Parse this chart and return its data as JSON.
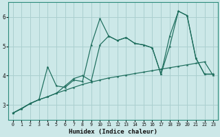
{
  "xlabel": "Humidex (Indice chaleur)",
  "background_color": "#cce8e8",
  "grid_color": "#aacfcf",
  "line_color": "#1a6b5a",
  "xlim": [
    -0.5,
    23.5
  ],
  "ylim": [
    2.5,
    6.5
  ],
  "xticks": [
    0,
    1,
    2,
    3,
    4,
    5,
    6,
    7,
    8,
    9,
    10,
    11,
    12,
    13,
    14,
    15,
    16,
    17,
    18,
    19,
    20,
    21,
    22,
    23
  ],
  "yticks": [
    3,
    4,
    5,
    6
  ],
  "line1_x": [
    0,
    1,
    2,
    3,
    4,
    5,
    6,
    7,
    8,
    9,
    10,
    11,
    12,
    13,
    14,
    15,
    16,
    17,
    18,
    19,
    20,
    21,
    22,
    23
  ],
  "line1_y": [
    2.72,
    2.87,
    3.05,
    3.18,
    3.28,
    3.4,
    3.5,
    3.6,
    3.7,
    3.78,
    3.85,
    3.92,
    3.97,
    4.02,
    4.07,
    4.12,
    4.17,
    4.22,
    4.27,
    4.32,
    4.37,
    4.42,
    4.47,
    4.0
  ],
  "line2_x": [
    0,
    1,
    2,
    3,
    4,
    5,
    6,
    7,
    8,
    9,
    10,
    11,
    12,
    13,
    14,
    15,
    16,
    17,
    18,
    19,
    20,
    21,
    22,
    23
  ],
  "line2_y": [
    2.72,
    2.87,
    3.05,
    3.18,
    4.3,
    3.65,
    3.6,
    3.85,
    3.8,
    5.05,
    5.95,
    5.35,
    5.2,
    5.3,
    5.1,
    5.05,
    4.95,
    4.05,
    5.0,
    6.2,
    6.05,
    4.6,
    4.05,
    4.05
  ],
  "line3_x": [
    0,
    2,
    3,
    4,
    5,
    6,
    7,
    8,
    9,
    10,
    11,
    12,
    13,
    14,
    15,
    16,
    17,
    18,
    19,
    20,
    21,
    22,
    23
  ],
  "line3_y": [
    2.72,
    3.05,
    3.18,
    3.28,
    3.4,
    3.65,
    3.9,
    4.0,
    3.82,
    5.05,
    5.35,
    5.2,
    5.3,
    5.1,
    5.05,
    4.95,
    4.05,
    5.35,
    6.2,
    6.05,
    4.6,
    4.05,
    4.05
  ]
}
